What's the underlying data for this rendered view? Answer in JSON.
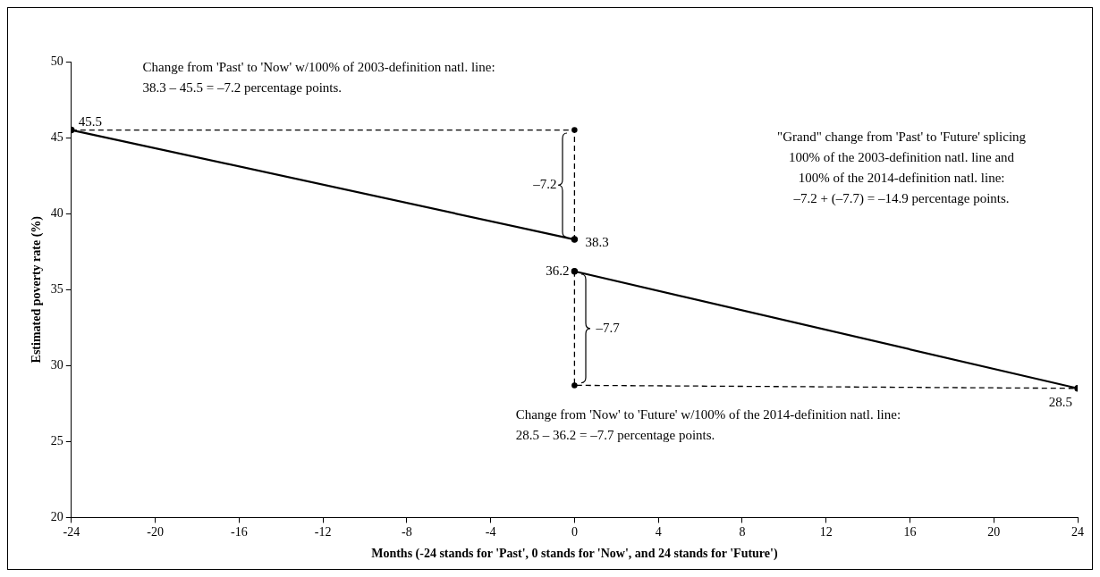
{
  "chart_data": {
    "type": "line",
    "xlabel": "Months (-24 stands for 'Past', 0 stands for 'Now', and 24 stands for 'Future')",
    "ylabel": "Estimated poverty rate (%)",
    "xlim": [
      -24,
      24
    ],
    "xticks": [
      -24,
      -20,
      -16,
      -12,
      -8,
      -4,
      0,
      4,
      8,
      12,
      16,
      20,
      24
    ],
    "ylim": [
      20,
      50
    ],
    "yticks": [
      20,
      25,
      30,
      35,
      40,
      45,
      50
    ],
    "grid": false,
    "legend": false,
    "marker": "circle",
    "series": [
      {
        "color": "#000000",
        "x": [
          -24,
          0
        ],
        "values": [
          45.5,
          38.3
        ],
        "value_labels": [
          "45.5",
          "38.3"
        ],
        "line_style": "solid"
      },
      {
        "color": "#000000",
        "x": [
          0,
          24
        ],
        "values": [
          36.2,
          28.5
        ],
        "value_labels": [
          "36.2",
          "28.5"
        ],
        "line_style": "solid"
      },
      {
        "color": "#000000",
        "x": [
          -24,
          0,
          0
        ],
        "values": [
          45.5,
          45.5,
          38.3
        ],
        "line_style": "dashed"
      },
      {
        "color": "#000000",
        "x": [
          0,
          0,
          24
        ],
        "values": [
          36.2,
          28.7,
          28.5
        ],
        "line_style": "dashed"
      }
    ],
    "annotations": [
      "Change from 'Past' to 'Now' w/100% of 2003-definition natl. line:\n38.3 – 45.5 = –7.2 percentage points.",
      "\"Grand\" change from 'Past' to 'Future' splicing\n100% of the 2003-definition natl. line and\n100% of the 2014-definition natl. line:\n–7.2 + (–7.7) = –14.9 percentage points.",
      "Change from 'Now' to 'Future' w/100% of the 2014-definition natl. line:\n28.5 – 36.2 = –7.7 percentage points.",
      {
        "text": "–7.2",
        "x": 0,
        "y": 41.9
      },
      {
        "text": "–7.7",
        "x": 0,
        "y": 32.45
      }
    ]
  }
}
